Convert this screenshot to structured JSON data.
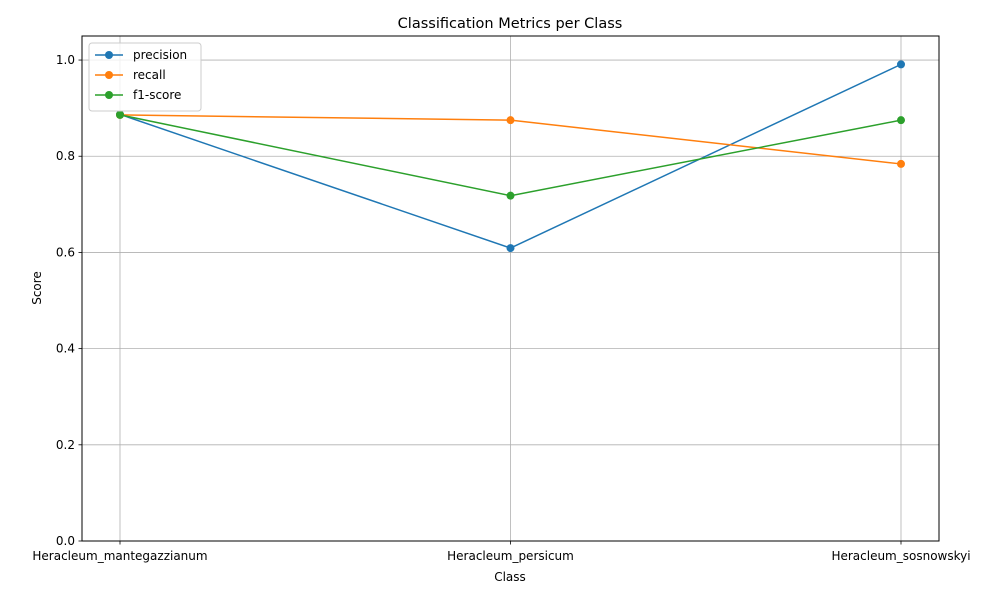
{
  "chart_data": {
    "type": "line",
    "title": "Classification Metrics per Class",
    "xlabel": "Class",
    "ylabel": "Score",
    "categories": [
      "Heracleum_mantegazzianum",
      "Heracleum_persicum",
      "Heracleum_sosnowskyi"
    ],
    "ylim": [
      0,
      1.05
    ],
    "yticks": [
      0.0,
      0.2,
      0.4,
      0.6,
      0.8,
      1.0
    ],
    "ytick_labels": [
      "0.0",
      "0.2",
      "0.4",
      "0.6",
      "0.8",
      "1.0"
    ],
    "grid": true,
    "legend_position": "top-left",
    "series": [
      {
        "name": "precision",
        "color": "#1f77b4",
        "values": [
          0.887,
          0.609,
          0.991
        ]
      },
      {
        "name": "recall",
        "color": "#ff7f0e",
        "values": [
          0.886,
          0.875,
          0.784
        ]
      },
      {
        "name": "f1-score",
        "color": "#2ca02c",
        "values": [
          0.886,
          0.718,
          0.875
        ]
      }
    ]
  }
}
